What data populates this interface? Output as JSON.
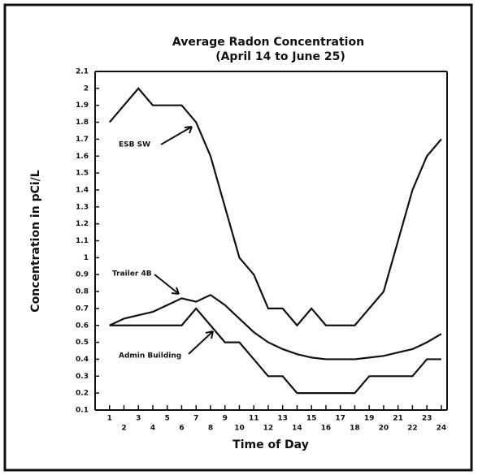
{
  "chart_data": {
    "type": "line",
    "title": "Average Radon Concentration",
    "subtitle": "(April 14 to June 25)",
    "x_label": "Time of Day",
    "y_label": "Concentration in pCi/L",
    "x": [
      1,
      2,
      3,
      4,
      5,
      6,
      7,
      8,
      9,
      10,
      11,
      12,
      13,
      14,
      15,
      16,
      17,
      18,
      19,
      20,
      21,
      22,
      23,
      24
    ],
    "xlim": [
      0,
      24.4
    ],
    "xticks": [
      1,
      2,
      3,
      4,
      5,
      6,
      7,
      8,
      9,
      10,
      11,
      12,
      13,
      14,
      15,
      16,
      17,
      18,
      19,
      20,
      21,
      22,
      23,
      24
    ],
    "ylim": [
      0.1,
      2.1
    ],
    "yticks": [
      0.1,
      0.2,
      0.3,
      0.4,
      0.5,
      0.6,
      0.7,
      0.8,
      0.9,
      1,
      1.1,
      1.2,
      1.3,
      1.4,
      1.5,
      1.6,
      1.7,
      1.8,
      1.9,
      2,
      2.1
    ],
    "series": [
      {
        "name": "ESB SW",
        "color": "#111111",
        "values": [
          1.8,
          1.9,
          2.0,
          1.9,
          1.9,
          1.9,
          1.8,
          1.6,
          1.3,
          1.0,
          0.9,
          0.7,
          0.7,
          0.6,
          0.7,
          0.6,
          0.6,
          0.6,
          0.7,
          0.8,
          1.1,
          1.4,
          1.6,
          1.7
        ]
      },
      {
        "name": "Trailer 4B",
        "color": "#111111",
        "values": [
          0.6,
          0.64,
          0.66,
          0.68,
          0.72,
          0.76,
          0.74,
          0.78,
          0.72,
          0.64,
          0.56,
          0.5,
          0.46,
          0.43,
          0.41,
          0.4,
          0.4,
          0.4,
          0.41,
          0.42,
          0.44,
          0.46,
          0.5,
          0.55
        ]
      },
      {
        "name": "Admin Building",
        "color": "#111111",
        "values": [
          0.6,
          0.6,
          0.6,
          0.6,
          0.6,
          0.6,
          0.7,
          0.6,
          0.5,
          0.5,
          0.4,
          0.3,
          0.3,
          0.2,
          0.2,
          0.2,
          0.2,
          0.2,
          0.3,
          0.3,
          0.3,
          0.3,
          0.4,
          0.4
        ]
      }
    ]
  }
}
